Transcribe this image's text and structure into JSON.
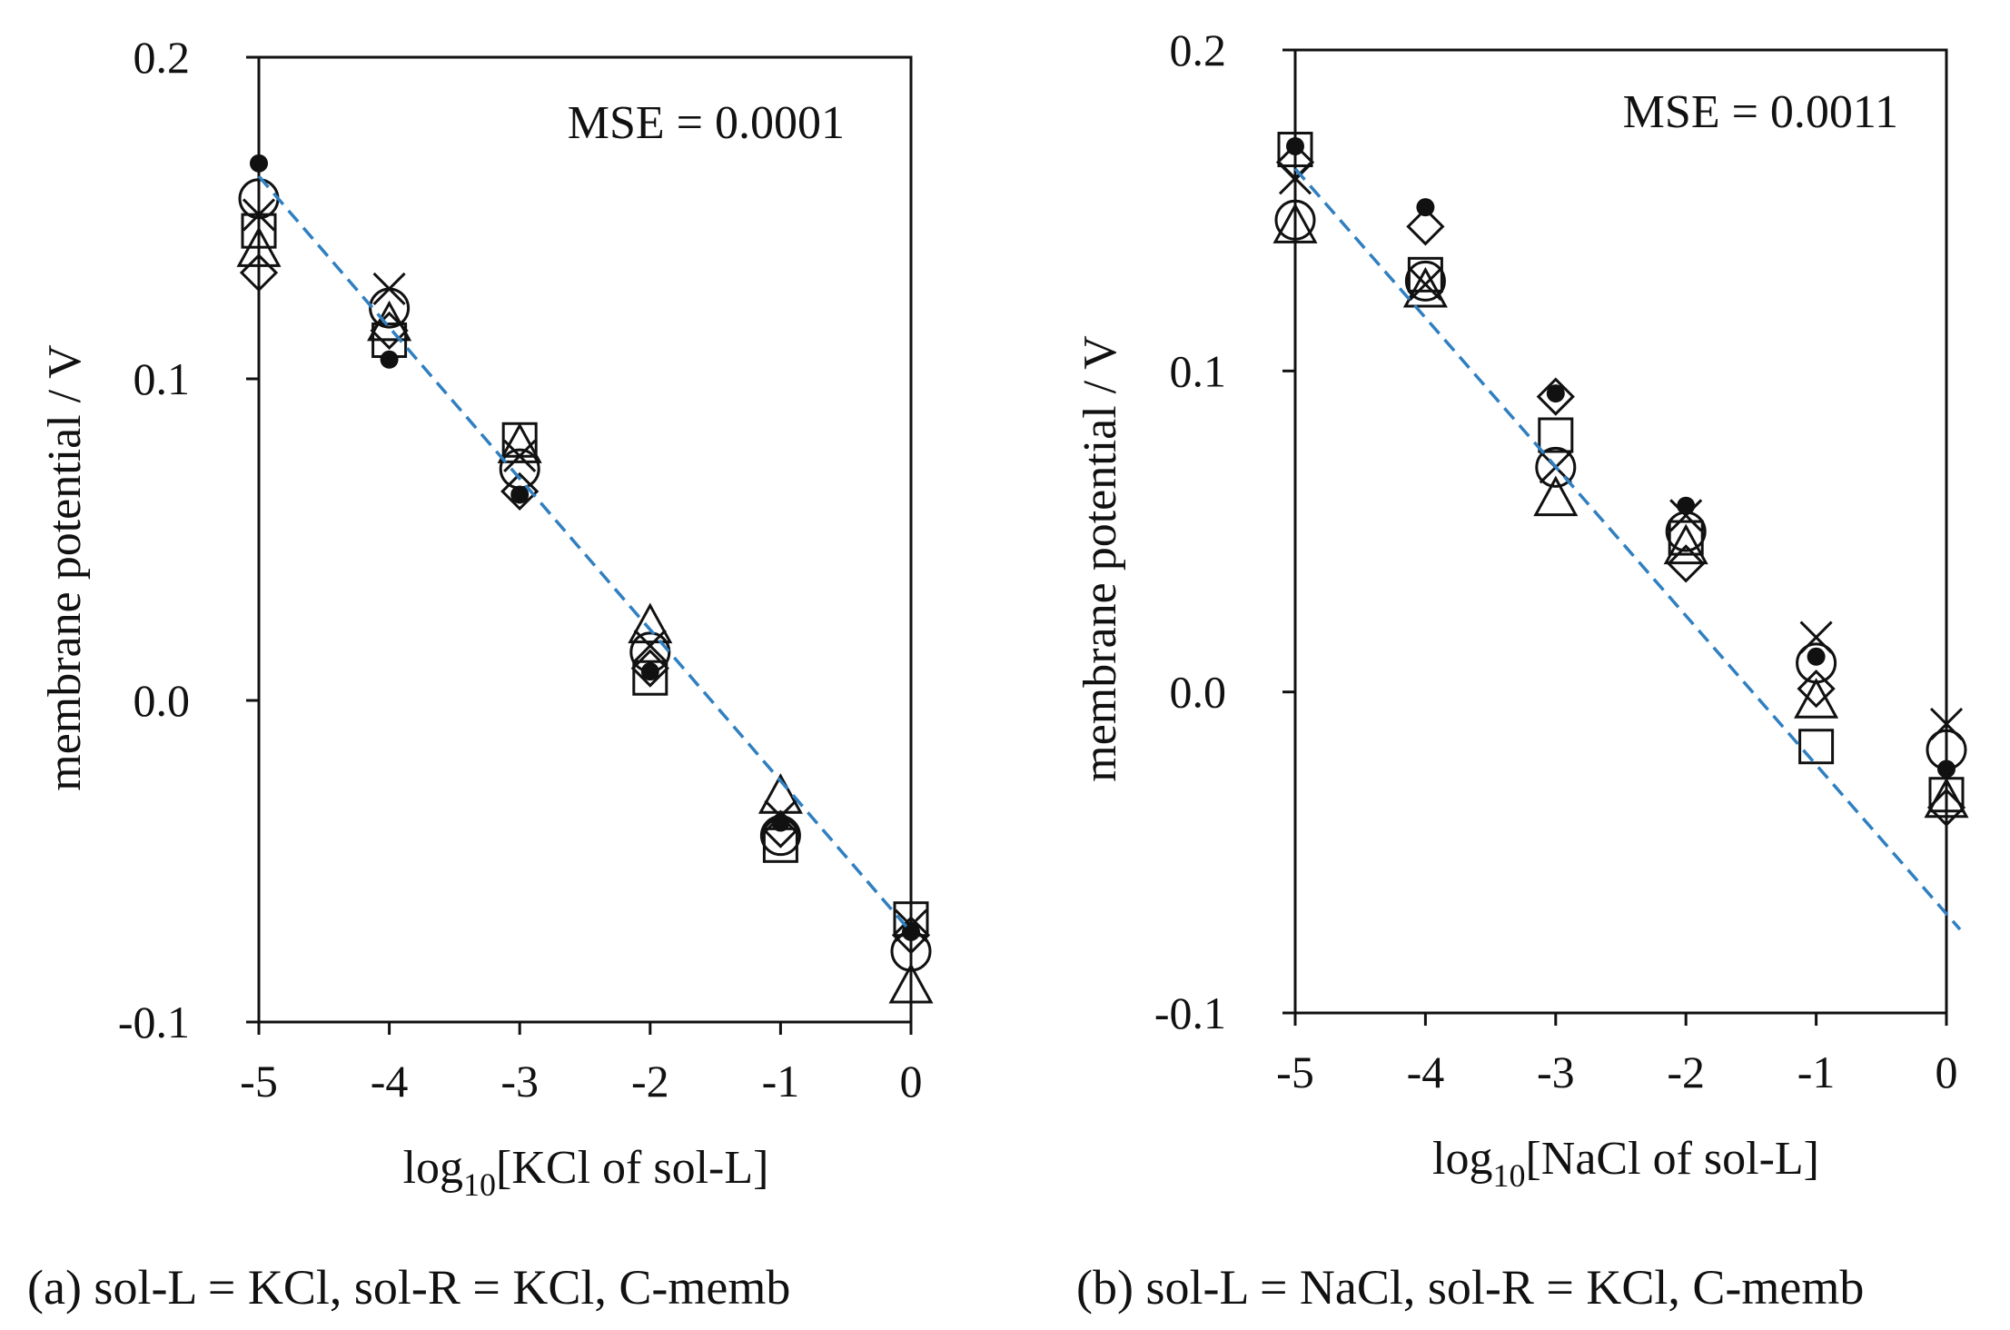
{
  "chart_data": [
    {
      "panel": "a",
      "type": "scatter",
      "caption": "(a) sol-L = KCl, sol-R = KCl, C-memb",
      "annotation": "MSE = 0.0001",
      "xlabel": {
        "prefix": "log",
        "sub": "10",
        "suffix": "[KCl of sol-L]"
      },
      "ylabel": "membrane potential / V",
      "xlim": [
        -5,
        0
      ],
      "ylim": [
        -0.1,
        0.2
      ],
      "xticks": [
        -5,
        -4,
        -3,
        -2,
        -1,
        0
      ],
      "xtick_labels": [
        "-5",
        "-4",
        "-3",
        "-2",
        "-1",
        "0"
      ],
      "yticks": [
        -0.1,
        0.0,
        0.1,
        0.2
      ],
      "ytick_labels": [
        "-0.1",
        "0.0",
        "0.1",
        "0.2"
      ],
      "grid": false,
      "x": [
        -5,
        -4,
        -3,
        -2,
        -1,
        0
      ],
      "series": [
        {
          "marker": "filled-circle",
          "values": [
            0.167,
            0.106,
            0.064,
            0.009,
            -0.038,
            -0.072
          ]
        },
        {
          "marker": "open-circle",
          "values": [
            0.156,
            0.122,
            0.072,
            0.015,
            -0.042,
            -0.078
          ]
        },
        {
          "marker": "open-square",
          "values": [
            0.146,
            0.112,
            0.081,
            0.007,
            -0.045,
            -0.068
          ]
        },
        {
          "marker": "open-triangle",
          "values": [
            0.14,
            0.117,
            0.079,
            0.023,
            -0.03,
            -0.089
          ]
        },
        {
          "marker": "open-diamond",
          "values": [
            0.133,
            0.115,
            0.065,
            0.01,
            -0.04,
            -0.073
          ]
        },
        {
          "marker": "cross",
          "values": [
            0.151,
            0.128,
            0.076,
            0.017,
            -0.036,
            -0.07
          ]
        }
      ],
      "fit_line": {
        "style": "dashed",
        "color": "#2f7fc1",
        "y_at_x_min": 0.163,
        "y_at_x_max": -0.072
      }
    },
    {
      "panel": "b",
      "type": "scatter",
      "caption": "(b) sol-L = NaCl, sol-R = KCl, C-memb",
      "annotation": "MSE = 0.0011",
      "xlabel": {
        "prefix": "log",
        "sub": "10",
        "suffix": "[NaCl of sol-L]"
      },
      "ylabel": "membrane potential / V",
      "xlim": [
        -5,
        0
      ],
      "ylim": [
        -0.1,
        0.2
      ],
      "xticks": [
        -5,
        -4,
        -3,
        -2,
        -1,
        0
      ],
      "xtick_labels": [
        "-5",
        "-4",
        "-3",
        "-2",
        "-1",
        "0"
      ],
      "yticks": [
        -0.1,
        0.0,
        0.1,
        0.2
      ],
      "ytick_labels": [
        "-0.1",
        "0.0",
        "0.1",
        "0.2"
      ],
      "grid": false,
      "x": [
        -5,
        -4,
        -3,
        -2,
        -1,
        0
      ],
      "series": [
        {
          "marker": "filled-circle",
          "values": [
            0.17,
            0.151,
            0.093,
            0.058,
            0.011,
            -0.024
          ]
        },
        {
          "marker": "open-circle",
          "values": [
            0.147,
            0.128,
            0.07,
            0.05,
            0.009,
            -0.018
          ]
        },
        {
          "marker": "open-square",
          "values": [
            0.169,
            0.13,
            0.08,
            0.048,
            -0.017,
            -0.032
          ]
        },
        {
          "marker": "open-triangle",
          "values": [
            0.145,
            0.125,
            0.06,
            0.045,
            -0.003,
            -0.034
          ]
        },
        {
          "marker": "open-diamond",
          "values": [
            0.165,
            0.145,
            0.092,
            0.04,
            0.001,
            -0.036
          ]
        },
        {
          "marker": "cross",
          "values": [
            0.16,
            0.127,
            0.07,
            0.055,
            0.017,
            -0.01
          ]
        }
      ],
      "fit_line": {
        "style": "dashed",
        "color": "#2f7fc1",
        "y_at_x_min": 0.163,
        "y_at_x_max": -0.072
      }
    }
  ]
}
